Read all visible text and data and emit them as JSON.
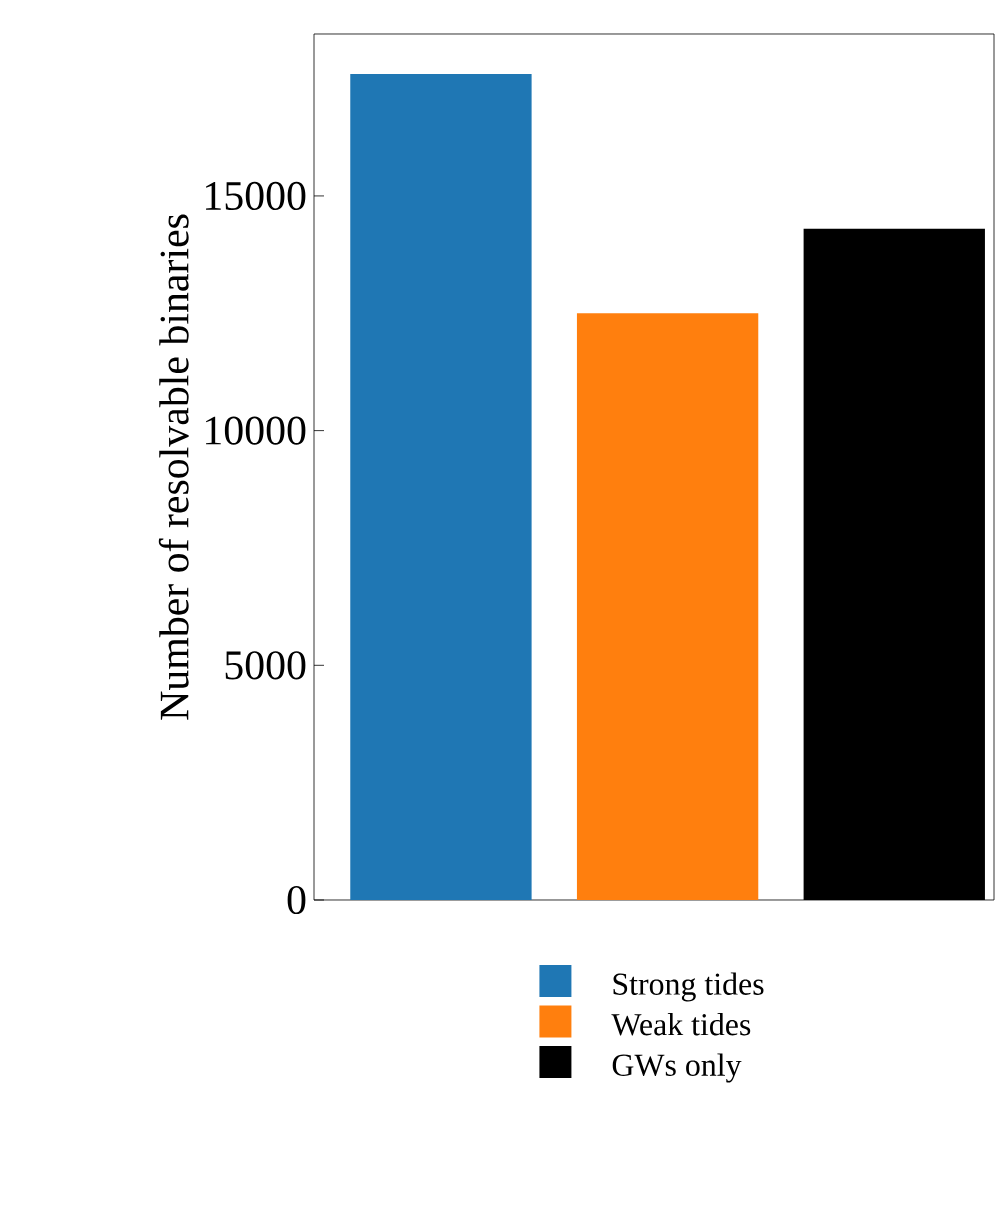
{
  "chart_data": {
    "type": "bar",
    "ylabel": "Number of resolvable binaries",
    "categories": [
      null,
      null,
      null
    ],
    "series": [
      {
        "name": "Strong tides",
        "color": "#1f77b4",
        "values": [
          17600,
          null,
          null
        ]
      },
      {
        "name": "Weak tides",
        "color": "#ff7f0e",
        "values": [
          null,
          12500,
          null
        ]
      },
      {
        "name": "GWs only",
        "color": "#000000",
        "values": [
          null,
          null,
          14300
        ]
      }
    ],
    "ylim": [
      0,
      18450
    ],
    "yticks": [
      {
        "value": 0,
        "label": "0"
      },
      {
        "value": 5000,
        "label": "5000"
      },
      {
        "value": 10000,
        "label": "10000"
      },
      {
        "value": 15000,
        "label": "15000"
      }
    ],
    "stacked": true,
    "legend": "bottom",
    "grid": false
  }
}
